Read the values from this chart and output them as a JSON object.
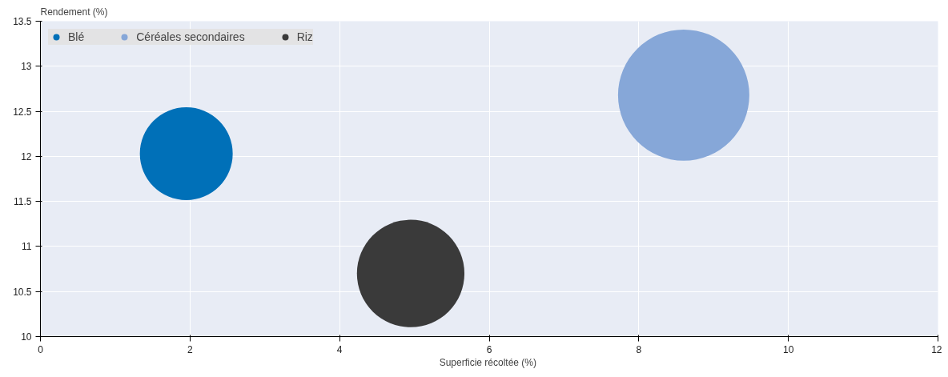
{
  "chart_data": {
    "type": "bubble",
    "xlabel": "Superficie récoltée  (%)",
    "ylabel": "Rendement (%)",
    "series": [
      {
        "name": "Blé",
        "color": "#0070b8",
        "x": [
          1.95
        ],
        "values": [
          12.03
        ],
        "sizes": [
          0.5
        ]
      },
      {
        "name": "Céréales secondaires",
        "color": "#86a7d8",
        "x": [
          8.6
        ],
        "values": [
          12.68
        ],
        "sizes": [
          1
        ]
      },
      {
        "name": "Riz",
        "color": "#3a3a3a",
        "x": [
          4.95
        ],
        "values": [
          10.7
        ],
        "sizes": [
          0.67
        ]
      }
    ],
    "xlim": [
      0,
      12
    ],
    "xticks": [
      0,
      2,
      4,
      6,
      8,
      10,
      12
    ],
    "ylim": [
      10,
      13.5
    ],
    "yticks": [
      10,
      10.5,
      11,
      11.5,
      12,
      12.5,
      13,
      13.5
    ],
    "grid": true,
    "legend": "top left",
    "marker": "circle"
  }
}
